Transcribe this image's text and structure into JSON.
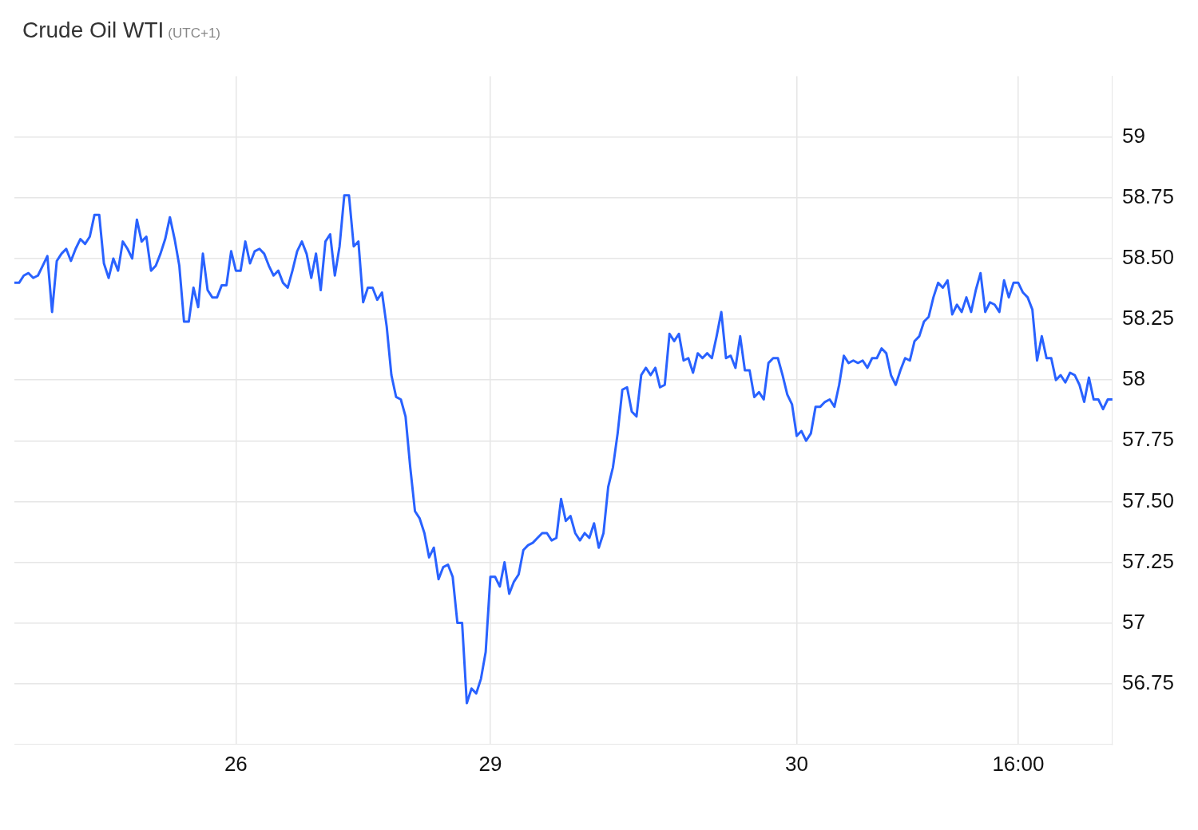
{
  "chart_data": {
    "type": "line",
    "title": "Crude Oil WTI",
    "subtitle": "(UTC+1)",
    "categories": [
      null,
      null,
      null,
      null,
      null,
      null,
      null,
      null,
      null,
      null,
      null,
      null,
      null,
      null,
      null,
      null,
      null,
      null,
      null,
      null,
      null,
      null,
      null,
      null,
      null,
      null,
      null,
      null,
      null,
      null,
      null,
      null,
      null,
      null,
      null,
      null,
      null,
      null,
      null,
      null,
      null,
      null,
      null,
      null,
      null,
      null,
      null,
      "26",
      null,
      null,
      null,
      null,
      null,
      null,
      null,
      null,
      null,
      null,
      null,
      null,
      null,
      null,
      null,
      null,
      null,
      null,
      null,
      null,
      null,
      null,
      null,
      null,
      null,
      null,
      null,
      null,
      null,
      null,
      null,
      null,
      null,
      null,
      null,
      null,
      null,
      null,
      null,
      null,
      null,
      null,
      null,
      null,
      null,
      null,
      null,
      null,
      null,
      null,
      null,
      null,
      null,
      "29",
      null,
      null,
      null,
      null,
      null,
      null,
      null,
      null,
      null,
      null,
      null,
      null,
      null,
      null,
      null,
      null,
      null,
      null,
      null,
      null,
      null,
      null,
      null,
      null,
      null,
      null,
      null,
      null,
      null,
      null,
      null,
      null,
      null,
      null,
      null,
      null,
      null,
      null,
      null,
      null,
      null,
      null,
      null,
      null,
      null,
      null,
      null,
      null,
      null,
      null,
      null,
      null,
      null,
      null,
      null,
      null,
      null,
      null,
      null,
      null,
      null,
      null,
      null,
      null,
      "30",
      null,
      null,
      null,
      null,
      null,
      null,
      null,
      null,
      null,
      null,
      null,
      null,
      null,
      null,
      null,
      null,
      null,
      null,
      null,
      null,
      null,
      null,
      null,
      null,
      null,
      null,
      null,
      null,
      null,
      null,
      null,
      null,
      null,
      null,
      null,
      null,
      null,
      null,
      null,
      null,
      null,
      null,
      null,
      null,
      null,
      null,
      "16:00",
      null,
      null,
      null,
      null,
      null,
      null,
      null,
      null,
      null,
      null,
      null,
      null,
      null,
      null,
      null,
      null,
      null,
      null,
      null,
      null
    ],
    "ylim": [
      56.5,
      59.25
    ],
    "yticks": [
      {
        "value": 56.75,
        "label": "56.75"
      },
      {
        "value": 57,
        "label": "57"
      },
      {
        "value": 57.25,
        "label": "57.25"
      },
      {
        "value": 57.5,
        "label": "57.50"
      },
      {
        "value": 57.75,
        "label": "57.75"
      },
      {
        "value": 58,
        "label": "58"
      },
      {
        "value": 58.25,
        "label": "58.25"
      },
      {
        "value": 58.5,
        "label": "58.50"
      },
      {
        "value": 58.75,
        "label": "58.75"
      },
      {
        "value": 59,
        "label": "59"
      }
    ],
    "grid": true,
    "legend": false,
    "marker": "none",
    "line_style": "solid",
    "series": [
      {
        "color": "#2962ff",
        "values": [
          58.4,
          58.4,
          58.43,
          58.44,
          58.42,
          58.43,
          58.47,
          58.51,
          58.28,
          58.49,
          58.52,
          58.54,
          58.49,
          58.54,
          58.58,
          58.56,
          58.59,
          58.68,
          58.68,
          58.48,
          58.42,
          58.5,
          58.45,
          58.57,
          58.54,
          58.5,
          58.66,
          58.57,
          58.59,
          58.45,
          58.47,
          58.52,
          58.58,
          58.67,
          58.58,
          58.47,
          58.24,
          58.24,
          58.38,
          58.3,
          58.52,
          58.37,
          58.34,
          58.34,
          58.39,
          58.39,
          58.53,
          58.45,
          58.45,
          58.57,
          58.48,
          58.53,
          58.54,
          58.52,
          58.47,
          58.43,
          58.45,
          58.4,
          58.38,
          58.45,
          58.53,
          58.57,
          58.52,
          58.42,
          58.52,
          58.37,
          58.57,
          58.6,
          58.43,
          58.55,
          58.76,
          58.76,
          58.55,
          58.57,
          58.32,
          58.38,
          58.38,
          58.33,
          58.36,
          58.22,
          58.02,
          57.93,
          57.92,
          57.85,
          57.64,
          57.46,
          57.43,
          57.37,
          57.27,
          57.31,
          57.18,
          57.23,
          57.24,
          57.19,
          57.0,
          57.0,
          56.67,
          56.73,
          56.71,
          56.77,
          56.88,
          57.19,
          57.19,
          57.15,
          57.25,
          57.12,
          57.17,
          57.2,
          57.3,
          57.32,
          57.33,
          57.35,
          57.37,
          57.37,
          57.34,
          57.35,
          57.51,
          57.42,
          57.44,
          57.37,
          57.34,
          57.37,
          57.35,
          57.41,
          57.31,
          57.37,
          57.56,
          57.64,
          57.78,
          57.96,
          57.97,
          57.87,
          57.85,
          58.02,
          58.05,
          58.02,
          58.05,
          57.97,
          57.98,
          58.19,
          58.16,
          58.19,
          58.08,
          58.09,
          58.03,
          58.11,
          58.09,
          58.11,
          58.09,
          58.18,
          58.28,
          58.09,
          58.1,
          58.05,
          58.18,
          58.04,
          58.04,
          57.93,
          57.95,
          57.92,
          58.07,
          58.09,
          58.09,
          58.02,
          57.94,
          57.9,
          57.77,
          57.79,
          57.75,
          57.78,
          57.89,
          57.89,
          57.91,
          57.92,
          57.89,
          57.98,
          58.1,
          58.07,
          58.08,
          58.07,
          58.08,
          58.05,
          58.09,
          58.09,
          58.13,
          58.11,
          58.02,
          57.98,
          58.04,
          58.09,
          58.08,
          58.16,
          58.18,
          58.24,
          58.26,
          58.34,
          58.4,
          58.38,
          58.41,
          58.27,
          58.31,
          58.28,
          58.34,
          58.28,
          58.37,
          58.44,
          58.28,
          58.32,
          58.31,
          58.28,
          58.41,
          58.34,
          58.4,
          58.4,
          58.36,
          58.34,
          58.29,
          58.08,
          58.18,
          58.09,
          58.09,
          58.0,
          58.02,
          57.99,
          58.03,
          58.02,
          57.98,
          57.91,
          58.01,
          57.92,
          57.92,
          57.88,
          57.92,
          57.92
        ]
      }
    ]
  }
}
